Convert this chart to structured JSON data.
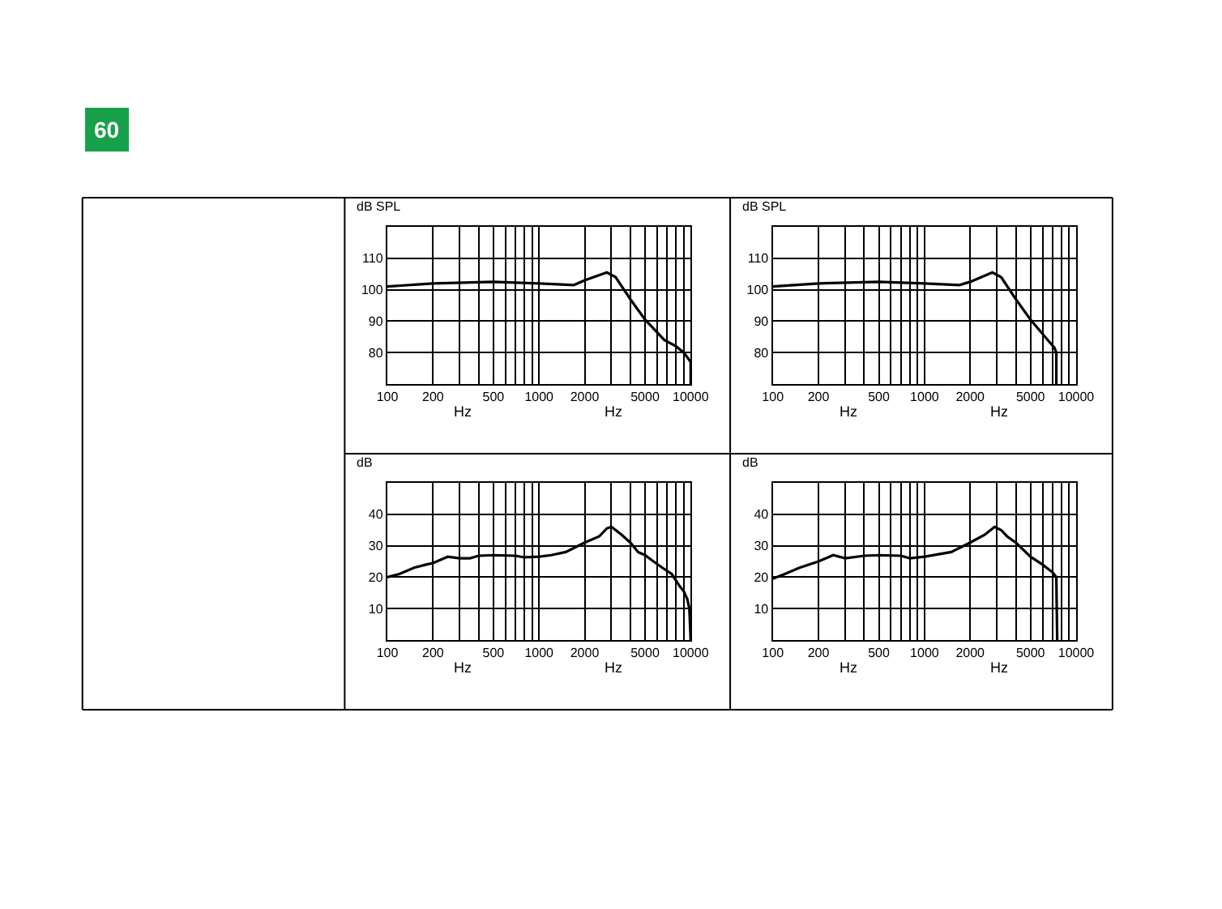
{
  "chart_data": [
    {
      "type": "other",
      "title": "60"
    },
    {
      "type": "line",
      "ylabel": "dB SPL",
      "annotations": [
        "Hz",
        "Hz"
      ],
      "log": "x",
      "grid": true,
      "marker": "none",
      "line_style": "solid",
      "xlim": [
        100,
        10000
      ],
      "xticks": [
        100,
        200,
        {
          "value": 300,
          "label": null
        },
        {
          "value": 400,
          "label": null
        },
        500,
        {
          "value": 600,
          "label": null
        },
        {
          "value": 700,
          "label": null
        },
        {
          "value": 800,
          "label": null
        },
        {
          "value": 900,
          "label": null
        },
        1000,
        2000,
        {
          "value": 3000,
          "label": null
        },
        {
          "value": 4000,
          "label": null
        },
        5000,
        {
          "value": 6000,
          "label": null
        },
        {
          "value": 7000,
          "label": null
        },
        {
          "value": 8000,
          "label": null
        },
        {
          "value": 9000,
          "label": null
        },
        10000
      ],
      "ylim": [
        70,
        120
      ],
      "yticks": [
        80,
        90,
        100,
        110
      ],
      "series": [
        {
          "color": "#000000",
          "x": [
            100,
            200,
            500,
            1000,
            1700,
            2000,
            2800,
            3200,
            4000,
            5000,
            6700,
            8000,
            9000,
            9500,
            10000,
            10000
          ],
          "values": [
            101,
            102,
            102.5,
            102,
            101.5,
            103,
            105.5,
            104,
            97,
            90.5,
            84,
            82,
            80,
            78.5,
            77,
            70
          ]
        }
      ]
    },
    {
      "type": "line",
      "ylabel": "dB SPL",
      "annotations": [
        "Hz",
        "Hz"
      ],
      "log": "x",
      "grid": true,
      "marker": "none",
      "line_style": "solid",
      "xlim": [
        100,
        10000
      ],
      "xticks": [
        100,
        200,
        {
          "value": 300,
          "label": null
        },
        {
          "value": 400,
          "label": null
        },
        500,
        {
          "value": 600,
          "label": null
        },
        {
          "value": 700,
          "label": null
        },
        {
          "value": 800,
          "label": null
        },
        {
          "value": 900,
          "label": null
        },
        1000,
        2000,
        {
          "value": 3000,
          "label": null
        },
        {
          "value": 4000,
          "label": null
        },
        5000,
        {
          "value": 6000,
          "label": null
        },
        {
          "value": 7000,
          "label": null
        },
        {
          "value": 8000,
          "label": null
        },
        {
          "value": 9000,
          "label": null
        },
        10000
      ],
      "ylim": [
        70,
        120
      ],
      "yticks": [
        80,
        90,
        100,
        110
      ],
      "series": [
        {
          "color": "#000000",
          "x": [
            100,
            200,
            500,
            1000,
            1700,
            2000,
            2800,
            3200,
            4000,
            5000,
            6500,
            7200,
            7400,
            7400
          ],
          "values": [
            101,
            102,
            102.5,
            102,
            101.5,
            102.5,
            105.5,
            104,
            97,
            90.5,
            84,
            81.5,
            80,
            70
          ]
        }
      ]
    },
    {
      "type": "line",
      "ylabel": "dB",
      "annotations": [
        "Hz",
        "Hz"
      ],
      "log": "x",
      "grid": true,
      "marker": "none",
      "line_style": "solid",
      "xlim": [
        100,
        10000
      ],
      "xticks": [
        100,
        200,
        {
          "value": 300,
          "label": null
        },
        {
          "value": 400,
          "label": null
        },
        500,
        {
          "value": 600,
          "label": null
        },
        {
          "value": 700,
          "label": null
        },
        {
          "value": 800,
          "label": null
        },
        {
          "value": 900,
          "label": null
        },
        1000,
        2000,
        {
          "value": 3000,
          "label": null
        },
        {
          "value": 4000,
          "label": null
        },
        5000,
        {
          "value": 6000,
          "label": null
        },
        {
          "value": 7000,
          "label": null
        },
        {
          "value": 8000,
          "label": null
        },
        {
          "value": 9000,
          "label": null
        },
        10000
      ],
      "ylim": [
        0,
        50
      ],
      "yticks": [
        10,
        20,
        30,
        40
      ],
      "series": [
        {
          "color": "#000000",
          "x": [
            100,
            120,
            150,
            180,
            200,
            250,
            300,
            350,
            400,
            500,
            700,
            800,
            1000,
            1200,
            1500,
            2000,
            2500,
            2800,
            3000,
            3200,
            3500,
            4000,
            4500,
            5000,
            5500,
            6500,
            7500,
            8500,
            9000,
            9500,
            9800,
            10000
          ],
          "values": [
            20,
            21,
            23,
            24,
            24.5,
            26.5,
            26,
            26,
            26.8,
            27,
            26.8,
            26.3,
            26.5,
            27,
            28,
            31,
            33,
            35.5,
            36,
            35,
            33.5,
            31,
            28,
            27,
            25.5,
            23,
            21,
            17,
            15.5,
            13,
            10,
            0
          ]
        }
      ]
    },
    {
      "type": "line",
      "ylabel": "dB",
      "annotations": [
        "Hz",
        "Hz"
      ],
      "log": "x",
      "grid": true,
      "marker": "none",
      "line_style": "solid",
      "xlim": [
        100,
        10000
      ],
      "xticks": [
        100,
        200,
        {
          "value": 300,
          "label": null
        },
        {
          "value": 400,
          "label": null
        },
        500,
        {
          "value": 600,
          "label": null
        },
        {
          "value": 700,
          "label": null
        },
        {
          "value": 800,
          "label": null
        },
        {
          "value": 900,
          "label": null
        },
        1000,
        2000,
        {
          "value": 3000,
          "label": null
        },
        {
          "value": 4000,
          "label": null
        },
        5000,
        {
          "value": 6000,
          "label": null
        },
        {
          "value": 7000,
          "label": null
        },
        {
          "value": 8000,
          "label": null
        },
        {
          "value": 9000,
          "label": null
        },
        10000
      ],
      "ylim": [
        0,
        50
      ],
      "yticks": [
        10,
        20,
        30,
        40
      ],
      "series": [
        {
          "color": "#000000",
          "x": [
            100,
            120,
            150,
            200,
            250,
            300,
            400,
            500,
            700,
            800,
            1000,
            1500,
            2000,
            2500,
            2900,
            3200,
            3500,
            4000,
            5000,
            6000,
            7000,
            7400,
            7500
          ],
          "values": [
            19.5,
            21,
            23,
            25,
            27,
            26,
            26.8,
            27,
            26.8,
            26,
            26.5,
            28,
            31,
            33.5,
            36,
            35,
            33,
            31,
            26.5,
            24,
            21.5,
            20,
            0
          ]
        }
      ]
    }
  ]
}
